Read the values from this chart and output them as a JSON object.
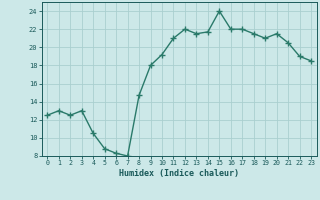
{
  "x": [
    0,
    1,
    2,
    3,
    4,
    5,
    6,
    7,
    8,
    9,
    10,
    11,
    12,
    13,
    14,
    15,
    16,
    17,
    18,
    19,
    20,
    21,
    22,
    23
  ],
  "y": [
    12.5,
    13.0,
    12.5,
    13.0,
    10.5,
    8.8,
    8.3,
    8.0,
    14.7,
    18.0,
    19.2,
    21.0,
    22.0,
    21.5,
    21.7,
    24.0,
    22.0,
    22.0,
    21.5,
    21.0,
    21.5,
    20.5,
    19.0,
    18.5
  ],
  "line_color": "#2a7a6a",
  "bg_color": "#cce8e8",
  "grid_color": "#aacfcf",
  "xlabel": "Humidex (Indice chaleur)",
  "ylim": [
    8,
    25
  ],
  "xlim": [
    -0.5,
    23.5
  ],
  "yticks": [
    8,
    10,
    12,
    14,
    16,
    18,
    20,
    22,
    24
  ],
  "xticks": [
    0,
    1,
    2,
    3,
    4,
    5,
    6,
    7,
    8,
    9,
    10,
    11,
    12,
    13,
    14,
    15,
    16,
    17,
    18,
    19,
    20,
    21,
    22,
    23
  ],
  "text_color": "#1a5a5a",
  "marker": "+",
  "markersize": 4,
  "linewidth": 1.0
}
